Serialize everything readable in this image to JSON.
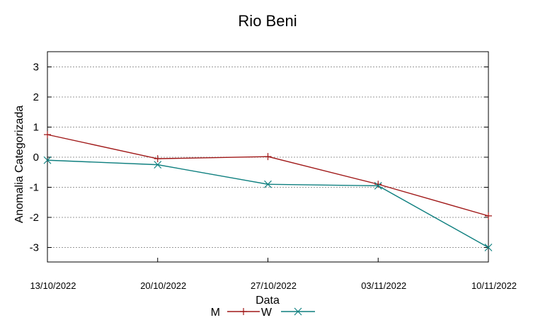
{
  "chart_data": {
    "type": "line",
    "title": "Rio Beni",
    "xlabel": "Data",
    "ylabel": "Anomalia Categorizada",
    "categories": [
      "13/10/2022",
      "20/10/2022",
      "27/10/2022",
      "03/11/2022",
      "10/11/2022"
    ],
    "y_ticks": [
      3,
      2,
      1,
      0,
      -1,
      -2,
      -3
    ],
    "ylim": [
      -3.5,
      3.5
    ],
    "grid": true,
    "legend_position": "bottom-center",
    "series": [
      {
        "name": "M",
        "values": [
          0.75,
          -0.05,
          0.02,
          -0.9,
          -1.95
        ],
        "color": "#a01818",
        "marker": "plus"
      },
      {
        "name": "W",
        "values": [
          -0.1,
          -0.25,
          -0.9,
          -0.95,
          -3.0
        ],
        "color": "#0e7f7f",
        "marker": "cross"
      }
    ]
  }
}
